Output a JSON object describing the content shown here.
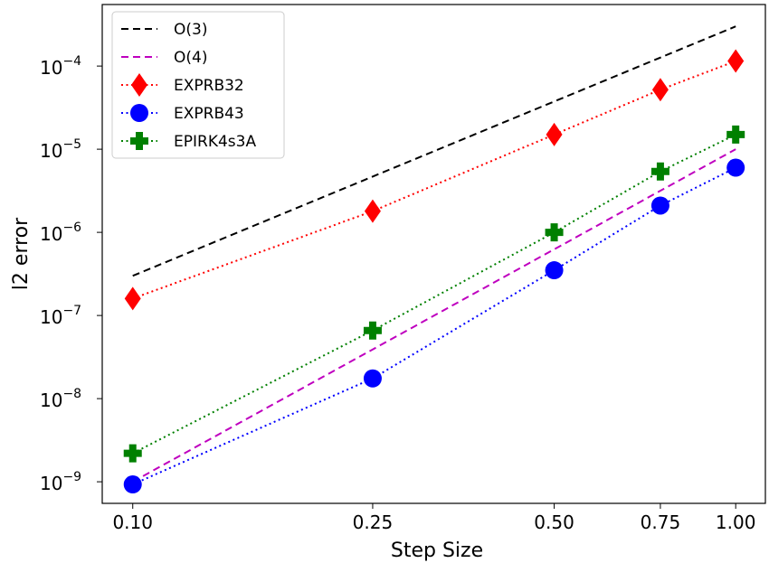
{
  "chart_data": {
    "type": "line",
    "xlabel": "Step Size",
    "ylabel": "l2 error",
    "x_scale": "log",
    "y_scale": "log",
    "xlim": [
      0.089,
      1.12
    ],
    "ylim": [
      5.5e-10,
      0.00055
    ],
    "x_ticks": [
      {
        "value": 0.1,
        "label": "0.10"
      },
      {
        "value": 0.25,
        "label": "0.25"
      },
      {
        "value": 0.5,
        "label": "0.50"
      },
      {
        "value": 0.75,
        "label": "0.75"
      },
      {
        "value": 1.0,
        "label": "1.00"
      }
    ],
    "y_ticks": [
      {
        "value": 1e-09,
        "base": "10",
        "exp": "−9"
      },
      {
        "value": 1e-08,
        "base": "10",
        "exp": "−8"
      },
      {
        "value": 1e-07,
        "base": "10",
        "exp": "−7"
      },
      {
        "value": 1e-06,
        "base": "10",
        "exp": "−6"
      },
      {
        "value": 1e-05,
        "base": "10",
        "exp": "−5"
      },
      {
        "value": 0.0001,
        "base": "10",
        "exp": "−4"
      }
    ],
    "legend_position": "top-left",
    "grid": false,
    "series": [
      {
        "name": "O(3)",
        "color": "#000000",
        "style": "dashed",
        "marker": "none",
        "x": [
          0.1,
          1.0
        ],
        "y": [
          3e-07,
          0.0003
        ]
      },
      {
        "name": "O(4)",
        "color": "#bf00bf",
        "style": "dashed",
        "marker": "none",
        "x": [
          0.1,
          1.0
        ],
        "y": [
          1e-09,
          1e-05
        ]
      },
      {
        "name": "EXPRB32",
        "color": "#ff0000",
        "style": "dotted",
        "marker": "diamond",
        "x": [
          0.1,
          0.25,
          0.5,
          0.75,
          1.0
        ],
        "y": [
          1.6e-07,
          1.8e-06,
          1.5e-05,
          5.2e-05,
          0.000115
        ]
      },
      {
        "name": "EXPRB43",
        "color": "#0000ff",
        "style": "dotted",
        "marker": "circle",
        "x": [
          0.1,
          0.25,
          0.5,
          0.75,
          1.0
        ],
        "y": [
          9.3e-10,
          1.75e-08,
          3.5e-07,
          2.1e-06,
          6e-06
        ]
      },
      {
        "name": "EPIRK4s3A",
        "color": "#008000",
        "style": "dotted",
        "marker": "plus",
        "x": [
          0.1,
          0.25,
          0.5,
          0.75,
          1.0
        ],
        "y": [
          2.2e-09,
          6.6e-08,
          1e-06,
          5.4e-06,
          1.5e-05
        ]
      }
    ]
  }
}
